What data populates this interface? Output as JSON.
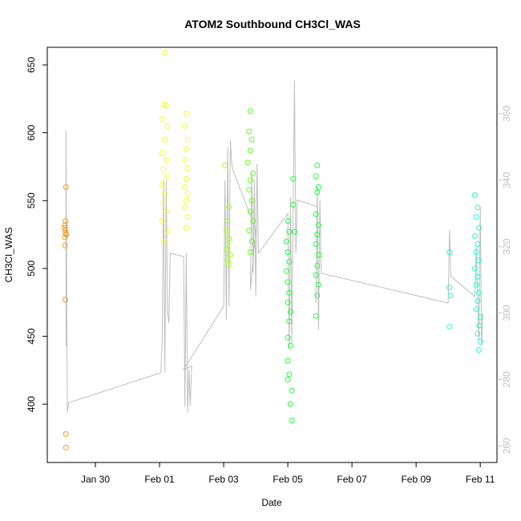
{
  "chart_data": {
    "type": "scatter",
    "title": "ATOM2 Southbound CH3Cl_WAS",
    "xlabel": "Date",
    "ylabel": "CH3Cl_WAS",
    "x_ticks": [
      "Jan 30",
      "Feb 01",
      "Feb 03",
      "Feb 05",
      "Feb 07",
      "Feb 09",
      "Feb 11"
    ],
    "x_tick_values": [
      "2017-01-30",
      "2017-02-01",
      "2017-02-03",
      "2017-02-05",
      "2017-02-07",
      "2017-02-09",
      "2017-02-11"
    ],
    "xlim": [
      "2017-01-28 12:00",
      "2017-02-11 12:30"
    ],
    "ylim": [
      357,
      663
    ],
    "y_ticks": [
      400,
      450,
      500,
      550,
      600,
      650
    ],
    "y2lim": [
      255,
      380
    ],
    "y2_ticks": [
      260,
      280,
      300,
      320,
      340,
      360
    ],
    "grid": false,
    "line_color": "#bebebe",
    "series": [
      {
        "color": "#f39c1a",
        "points": [
          [
            "2017-01-29 02:00",
            560
          ],
          [
            "2017-01-29 01:40",
            535
          ],
          [
            "2017-01-29 01:20",
            532
          ],
          [
            "2017-01-29 01:00",
            530
          ],
          [
            "2017-01-29 01:30",
            528
          ],
          [
            "2017-01-29 01:50",
            526
          ],
          [
            "2017-01-29 02:10",
            525
          ],
          [
            "2017-01-29 01:10",
            523
          ],
          [
            "2017-01-29 01:20",
            517
          ],
          [
            "2017-01-29 01:30",
            477
          ],
          [
            "2017-01-29 01:50",
            378
          ],
          [
            "2017-01-29 02:00",
            368
          ]
        ]
      },
      {
        "color": "#f2ff1a",
        "points": [
          [
            "2017-02-01 04:00",
            659
          ],
          [
            "2017-02-01 03:00",
            621
          ],
          [
            "2017-02-01 05:00",
            620
          ],
          [
            "2017-02-01 02:00",
            610
          ],
          [
            "2017-02-01 06:00",
            605
          ],
          [
            "2017-02-01 04:00",
            595
          ],
          [
            "2017-02-01 02:00",
            585
          ],
          [
            "2017-02-01 05:00",
            580
          ],
          [
            "2017-02-01 03:00",
            573
          ],
          [
            "2017-02-01 06:00",
            568
          ],
          [
            "2017-02-01 02:00",
            562
          ],
          [
            "2017-02-01 04:00",
            555
          ],
          [
            "2017-02-01 03:00",
            548
          ],
          [
            "2017-02-01 05:00",
            542
          ],
          [
            "2017-02-01 02:00",
            535
          ],
          [
            "2017-02-01 06:00",
            528
          ],
          [
            "2017-02-01 04:00",
            520
          ],
          [
            "2017-02-01 20:00",
            614
          ],
          [
            "2017-02-01 19:00",
            605
          ],
          [
            "2017-02-01 21:00",
            595
          ],
          [
            "2017-02-01 20:00",
            588
          ],
          [
            "2017-02-01 19:00",
            580
          ],
          [
            "2017-02-01 21:00",
            574
          ],
          [
            "2017-02-01 20:00",
            566
          ],
          [
            "2017-02-01 19:00",
            560
          ],
          [
            "2017-02-01 21:00",
            555
          ],
          [
            "2017-02-01 20:00",
            550
          ],
          [
            "2017-02-01 19:00",
            545
          ],
          [
            "2017-02-01 21:00",
            538
          ],
          [
            "2017-02-01 20:00",
            530
          ]
        ]
      },
      {
        "color": "#a8ff1a",
        "points": [
          [
            "2017-02-03 01:00",
            576
          ],
          [
            "2017-02-03 04:00",
            545
          ],
          [
            "2017-02-03 03:00",
            535
          ],
          [
            "2017-02-03 02:00",
            528
          ],
          [
            "2017-02-03 04:00",
            522
          ],
          [
            "2017-02-03 03:00",
            518
          ],
          [
            "2017-02-03 02:00",
            514
          ],
          [
            "2017-02-03 05:00",
            510
          ],
          [
            "2017-02-03 03:00",
            506
          ],
          [
            "2017-02-03 04:00",
            503
          ]
        ]
      },
      {
        "color": "#5cff1a",
        "points": [
          [
            "2017-02-03 20:00",
            616
          ],
          [
            "2017-02-03 19:00",
            601
          ],
          [
            "2017-02-03 21:00",
            595
          ],
          [
            "2017-02-03 20:00",
            587
          ],
          [
            "2017-02-03 18:00",
            578
          ],
          [
            "2017-02-03 22:00",
            570
          ],
          [
            "2017-02-03 20:00",
            565
          ],
          [
            "2017-02-03 19:00",
            558
          ],
          [
            "2017-02-03 21:00",
            550
          ],
          [
            "2017-02-03 20:00",
            542
          ],
          [
            "2017-02-03 22:00",
            535
          ],
          [
            "2017-02-03 19:00",
            528
          ],
          [
            "2017-02-03 21:00",
            520
          ],
          [
            "2017-02-03 20:00",
            512
          ]
        ]
      },
      {
        "color": "#1aff3c",
        "points": [
          [
            "2017-02-05 00:00",
            535
          ],
          [
            "2017-02-05 01:00",
            527
          ],
          [
            "2017-02-04 23:00",
            520
          ],
          [
            "2017-02-05 00:00",
            512
          ],
          [
            "2017-02-05 01:00",
            505
          ],
          [
            "2017-02-04 23:00",
            498
          ],
          [
            "2017-02-05 00:00",
            490
          ],
          [
            "2017-02-05 01:00",
            482
          ],
          [
            "2017-02-05 00:00",
            475
          ],
          [
            "2017-02-05 02:00",
            468
          ],
          [
            "2017-02-05 01:00",
            461
          ],
          [
            "2017-02-05 00:00",
            449
          ],
          [
            "2017-02-05 02:00",
            443
          ],
          [
            "2017-02-05 00:00",
            432
          ],
          [
            "2017-02-05 01:00",
            422
          ],
          [
            "2017-02-05 00:00",
            418
          ],
          [
            "2017-02-05 03:00",
            410
          ],
          [
            "2017-02-05 02:00",
            400
          ],
          [
            "2017-02-05 03:00",
            388
          ],
          [
            "2017-02-05 04:00",
            566
          ],
          [
            "2017-02-05 04:00",
            547
          ],
          [
            "2017-02-05 05:00",
            527
          ],
          [
            "2017-02-05 22:00",
            576
          ],
          [
            "2017-02-05 21:00",
            568
          ],
          [
            "2017-02-05 23:00",
            560
          ],
          [
            "2017-02-05 22:00",
            556
          ],
          [
            "2017-02-05 21:00",
            540
          ],
          [
            "2017-02-05 23:00",
            532
          ],
          [
            "2017-02-05 22:00",
            525
          ],
          [
            "2017-02-05 21:00",
            518
          ],
          [
            "2017-02-05 23:00",
            510
          ],
          [
            "2017-02-05 22:00",
            502
          ],
          [
            "2017-02-05 21:00",
            495
          ],
          [
            "2017-02-05 23:00",
            488
          ],
          [
            "2017-02-05 22:00",
            480
          ],
          [
            "2017-02-05 21:00",
            465
          ]
        ]
      },
      {
        "color": "#1affcf",
        "points": [
          [
            "2017-02-10 01:00",
            512
          ],
          [
            "2017-02-10 01:00",
            486
          ],
          [
            "2017-02-10 02:00",
            480
          ],
          [
            "2017-02-10 01:00",
            457
          ],
          [
            "2017-02-10 20:00",
            554
          ],
          [
            "2017-02-10 22:00",
            545
          ],
          [
            "2017-02-10 21:00",
            538
          ],
          [
            "2017-02-10 23:00",
            530
          ],
          [
            "2017-02-10 20:00",
            524
          ],
          [
            "2017-02-10 22:00",
            518
          ],
          [
            "2017-02-10 21:00",
            512
          ],
          [
            "2017-02-10 23:00",
            506
          ],
          [
            "2017-02-10 20:00",
            500
          ],
          [
            "2017-02-10 22:00",
            494
          ],
          [
            "2017-02-10 21:00",
            488
          ],
          [
            "2017-02-10 23:00",
            482
          ],
          [
            "2017-02-10 22:00",
            476
          ],
          [
            "2017-02-10 21:00",
            470
          ],
          [
            "2017-02-11 00:00",
            464
          ],
          [
            "2017-02-10 23:00",
            458
          ],
          [
            "2017-02-10 22:00",
            452
          ],
          [
            "2017-02-11 00:00",
            446
          ],
          [
            "2017-02-10 23:00",
            440
          ]
        ]
      }
    ],
    "line_secondary": [
      [
        "2017-01-29 02:00",
        290
      ],
      [
        "2017-01-29 02:00",
        355
      ],
      [
        "2017-01-29 03:00",
        270
      ],
      [
        "2017-01-29 04:00",
        273
      ],
      [
        "2017-02-01 01:00",
        282
      ],
      [
        "2017-02-01 02:00",
        292
      ],
      [
        "2017-02-01 03:00",
        340
      ],
      [
        "2017-02-01 04:00",
        282
      ],
      [
        "2017-02-01 05:00",
        340
      ],
      [
        "2017-02-01 06:00",
        300
      ],
      [
        "2017-02-01 07:00",
        297
      ],
      [
        "2017-02-01 08:00",
        318
      ],
      [
        "2017-02-01 18:00",
        317
      ],
      [
        "2017-02-01 19:00",
        272
      ],
      [
        "2017-02-01 20:00",
        318
      ],
      [
        "2017-02-01 21:00",
        270
      ],
      [
        "2017-02-01 22:00",
        283
      ],
      [
        "2017-02-01 23:00",
        272
      ],
      [
        "2017-02-02 00:00",
        284
      ],
      [
        "2017-02-01 18:00",
        283
      ],
      [
        "2017-02-03 00:00",
        302
      ],
      [
        "2017-02-03 01:00",
        340
      ],
      [
        "2017-02-03 02:00",
        298
      ],
      [
        "2017-02-03 03:00",
        350
      ],
      [
        "2017-02-03 04:00",
        302
      ],
      [
        "2017-02-03 05:00",
        352
      ],
      [
        "2017-02-03 06:00",
        345
      ],
      [
        "2017-02-03 07:00",
        343
      ],
      [
        "2017-02-04 00:00",
        325
      ],
      [
        "2017-02-03 20:00",
        307
      ],
      [
        "2017-02-03 21:00",
        342
      ],
      [
        "2017-02-03 22:00",
        312
      ],
      [
        "2017-02-03 23:00",
        340
      ],
      [
        "2017-02-04 00:00",
        305
      ],
      [
        "2017-02-04 01:00",
        345
      ],
      [
        "2017-02-04 02:00",
        318
      ],
      [
        "2017-02-05 00:00",
        330
      ],
      [
        "2017-02-05 01:00",
        289
      ],
      [
        "2017-02-05 02:00",
        335
      ],
      [
        "2017-02-05 03:00",
        291
      ],
      [
        "2017-02-05 04:00",
        333
      ],
      [
        "2017-02-05 05:00",
        370
      ],
      [
        "2017-02-05 06:00",
        318
      ],
      [
        "2017-02-05 07:00",
        334
      ],
      [
        "2017-02-05 22:00",
        332
      ],
      [
        "2017-02-05 21:00",
        303
      ],
      [
        "2017-02-05 22:00",
        338
      ],
      [
        "2017-02-05 23:00",
        295
      ],
      [
        "2017-02-06 00:00",
        334
      ],
      [
        "2017-02-06 01:00",
        312
      ],
      [
        "2017-02-10 00:00",
        303
      ],
      [
        "2017-02-10 01:00",
        325
      ],
      [
        "2017-02-10 02:00",
        311
      ],
      [
        "2017-02-10 20:00",
        305
      ],
      [
        "2017-02-10 21:00",
        320
      ],
      [
        "2017-02-10 22:00",
        306
      ],
      [
        "2017-02-10 23:00",
        292
      ],
      [
        "2017-02-11 00:00",
        332
      ],
      [
        "2017-02-11 01:00",
        290
      ],
      [
        "2017-02-11 02:00",
        300
      ]
    ]
  }
}
